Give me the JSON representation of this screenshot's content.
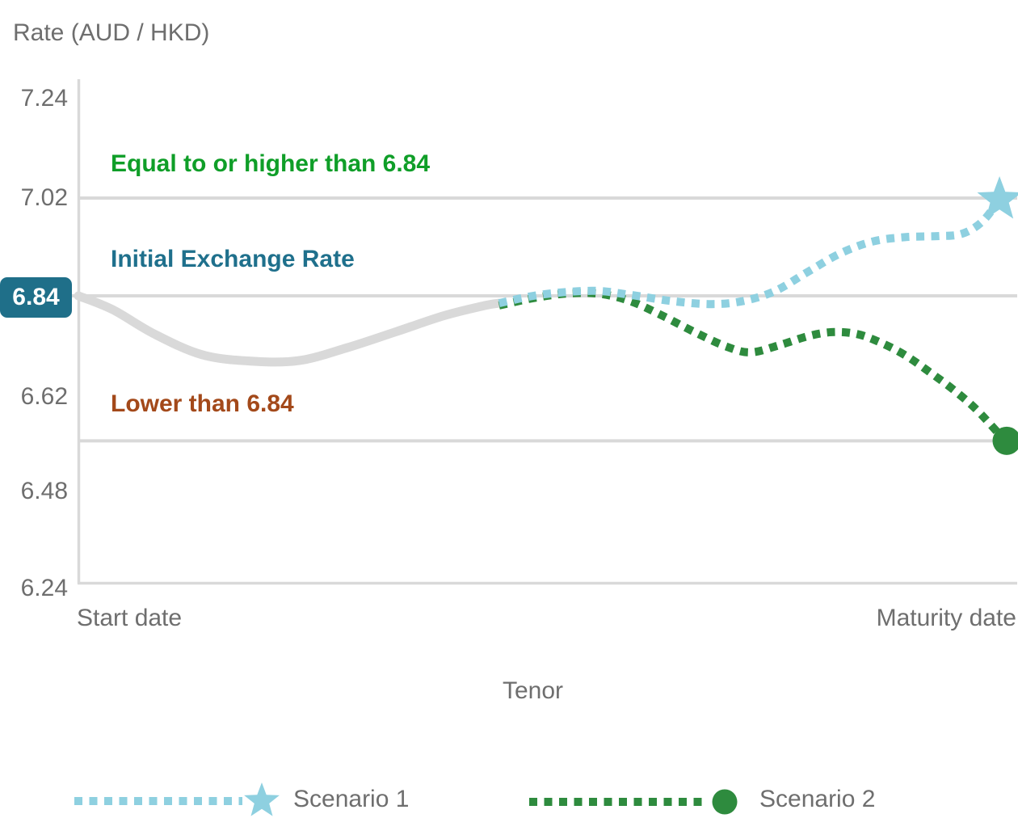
{
  "chart_data": {
    "type": "line",
    "title": "Rate (AUD / HKD)",
    "xlabel": "Tenor",
    "x_ticks": [
      "Start date",
      "Maturity date"
    ],
    "y_ticks": [
      "7.24",
      "7.02",
      "6.84",
      "6.62",
      "6.48",
      "6.24"
    ],
    "y_tick_values": [
      7.24,
      7.02,
      6.84,
      6.62,
      6.48,
      6.24
    ],
    "ylim": [
      6.24,
      7.24
    ],
    "grid": "horizontal-partial",
    "gridline_values": [
      7.02,
      6.84,
      6.555
    ],
    "initial_rate": {
      "label": "6.84",
      "value": 6.84
    },
    "annotations": [
      {
        "text": "Equal to or higher than 6.84",
        "color": "#0f9e28"
      },
      {
        "text": "Initial Exchange Rate",
        "color": "#1f708c"
      },
      {
        "text": "Lower than 6.84",
        "color": "#a3491a"
      }
    ],
    "legend_position": "bottom",
    "legend": [
      {
        "label": "Scenario 1",
        "marker": "star",
        "color": "#8ed0e0"
      },
      {
        "label": "Scenario 2",
        "marker": "circle",
        "color": "#2e8b3e"
      }
    ],
    "series": [
      {
        "id": "initial-path",
        "color": "#d9d9d9",
        "style": "solid",
        "marker": null,
        "points": [
          [
            0,
            6.84
          ],
          [
            3.7,
            6.81
          ],
          [
            8.1,
            6.758
          ],
          [
            13.3,
            6.712
          ],
          [
            18.6,
            6.698
          ],
          [
            23.8,
            6.699
          ],
          [
            29,
            6.727
          ],
          [
            34.3,
            6.762
          ],
          [
            39.5,
            6.797
          ],
          [
            43.9,
            6.819
          ],
          [
            45.4,
            6.824
          ]
        ]
      },
      {
        "id": "scenario-1",
        "name": "Scenario 1",
        "color": "#8ed0e0",
        "style": "dotted",
        "marker": "star",
        "end_value": 7.02,
        "points": [
          [
            45.4,
            6.824
          ],
          [
            49.1,
            6.84
          ],
          [
            52.6,
            6.847
          ],
          [
            56.1,
            6.849
          ],
          [
            59.5,
            6.842
          ],
          [
            63.9,
            6.829
          ],
          [
            68.3,
            6.822
          ],
          [
            71.8,
            6.829
          ],
          [
            75.2,
            6.849
          ],
          [
            78.7,
            6.884
          ],
          [
            82.2,
            6.918
          ],
          [
            85.7,
            6.94
          ],
          [
            89.2,
            6.948
          ],
          [
            92.7,
            6.95
          ],
          [
            95.3,
            6.954
          ],
          [
            97.5,
            6.976
          ],
          [
            99.4,
            7.017
          ]
        ]
      },
      {
        "id": "scenario-2",
        "name": "Scenario 2",
        "color": "#2e8b3e",
        "style": "dotted",
        "marker": "circle",
        "end_value": 6.56,
        "points": [
          [
            45.4,
            6.819
          ],
          [
            49.1,
            6.835
          ],
          [
            52.6,
            6.844
          ],
          [
            56.1,
            6.844
          ],
          [
            59.5,
            6.829
          ],
          [
            63,
            6.797
          ],
          [
            66.5,
            6.761
          ],
          [
            70,
            6.729
          ],
          [
            72.6,
            6.717
          ],
          [
            75.7,
            6.733
          ],
          [
            78.7,
            6.752
          ],
          [
            81.3,
            6.761
          ],
          [
            84,
            6.757
          ],
          [
            86.6,
            6.738
          ],
          [
            89.2,
            6.711
          ],
          [
            91.8,
            6.675
          ],
          [
            94.4,
            6.636
          ],
          [
            97,
            6.6
          ],
          [
            100,
            6.555
          ]
        ]
      }
    ]
  },
  "colors": {
    "axis_gray": "#d9d9d9",
    "text_gray": "#6e6e6e",
    "badge_teal": "#1f6f89",
    "scenario1_blue": "#8ed0e0",
    "scenario2_green": "#2e8b3e"
  }
}
